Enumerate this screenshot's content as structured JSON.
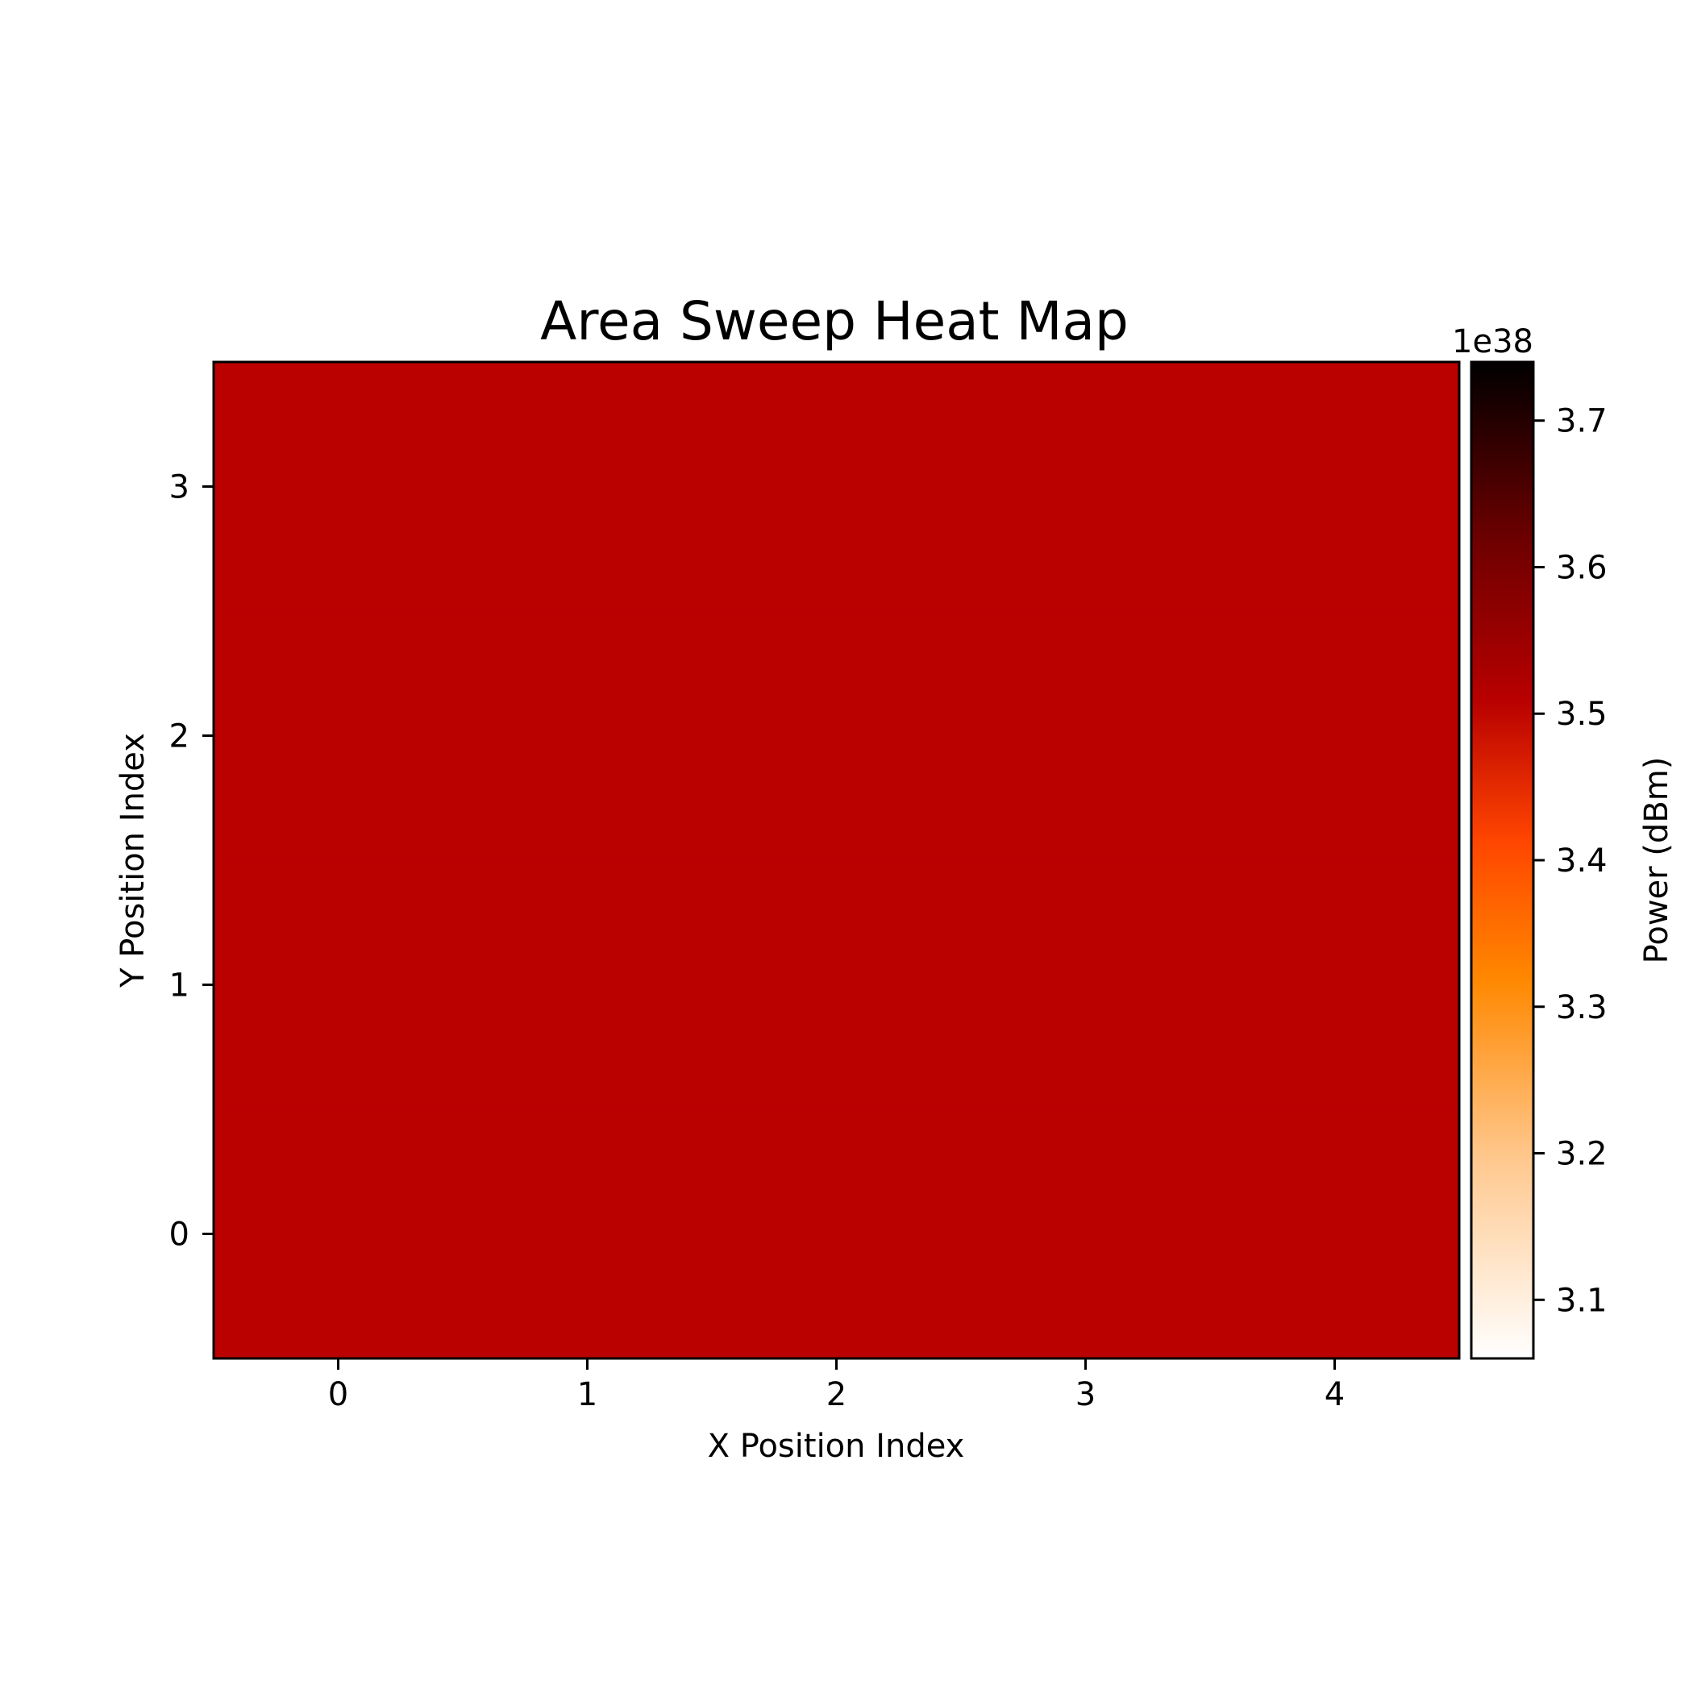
{
  "chart_data": {
    "type": "heatmap",
    "title": "Area Sweep Heat Map",
    "xlabel": "X Position Index",
    "ylabel": "Y Position Index",
    "x_ticks": [
      "0",
      "1",
      "2",
      "3",
      "4"
    ],
    "y_ticks": [
      "0",
      "1",
      "2",
      "3"
    ],
    "xlim": [
      -0.5,
      4.5
    ],
    "ylim": [
      -0.5,
      3.5
    ],
    "grid": false,
    "colormap": "gist_heat_r",
    "cell_color": "#bb0000",
    "values": [
      [
        3.4e+38,
        3.4e+38,
        3.4e+38,
        3.4e+38,
        3.4e+38
      ],
      [
        3.4e+38,
        3.4e+38,
        3.4e+38,
        3.4e+38,
        3.4e+38
      ],
      [
        3.4e+38,
        3.4e+38,
        3.4e+38,
        3.4e+38,
        3.4e+38
      ],
      [
        3.4e+38,
        3.4e+38,
        3.4e+38,
        3.4e+38,
        3.4e+38
      ]
    ],
    "colorbar": {
      "label": "Power (dBm)",
      "offset_text": "1e38",
      "range": [
        3.06,
        3.74
      ],
      "ticks": [
        3.1,
        3.2,
        3.3,
        3.4,
        3.5,
        3.6,
        3.7
      ],
      "tick_labels": [
        "3.1",
        "3.2",
        "3.3",
        "3.4",
        "3.5",
        "3.6",
        "3.7"
      ]
    }
  }
}
